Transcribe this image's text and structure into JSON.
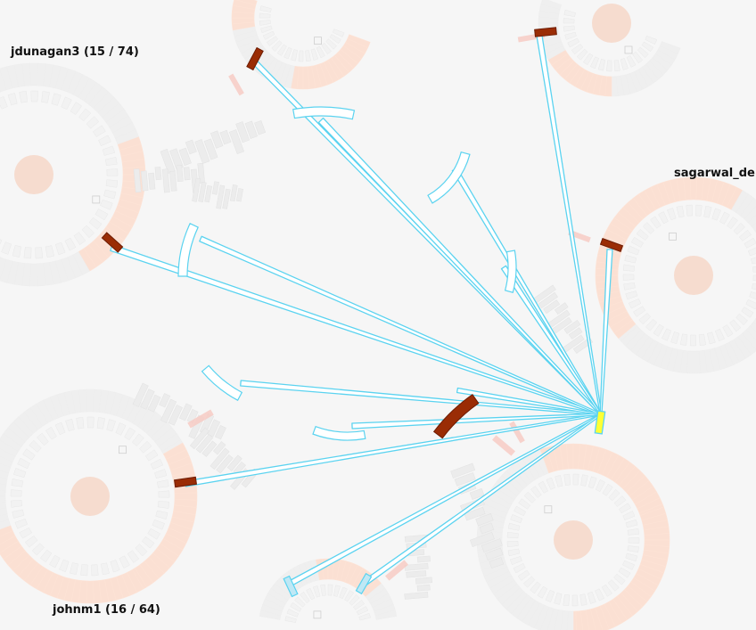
{
  "labels": {
    "jdunagan3": "jdunagan3 (15 / 74)",
    "sagarwal": "sagarwal_de",
    "johnm1": "johnm1 (16 / 64)"
  },
  "colors": {
    "background": "#f6f6f6",
    "peach_ring": "#fbe0d3",
    "peach_core": "#f6dccf",
    "grey_ring": "#efefef",
    "link_stroke": "#5bd3f0",
    "selected_segment": "#9a2c05",
    "highlighted_segment": "#ffff33",
    "pink_wedge": "#f7c9c2"
  },
  "icons": [
    "node-core-circle",
    "small-square-marker"
  ]
}
